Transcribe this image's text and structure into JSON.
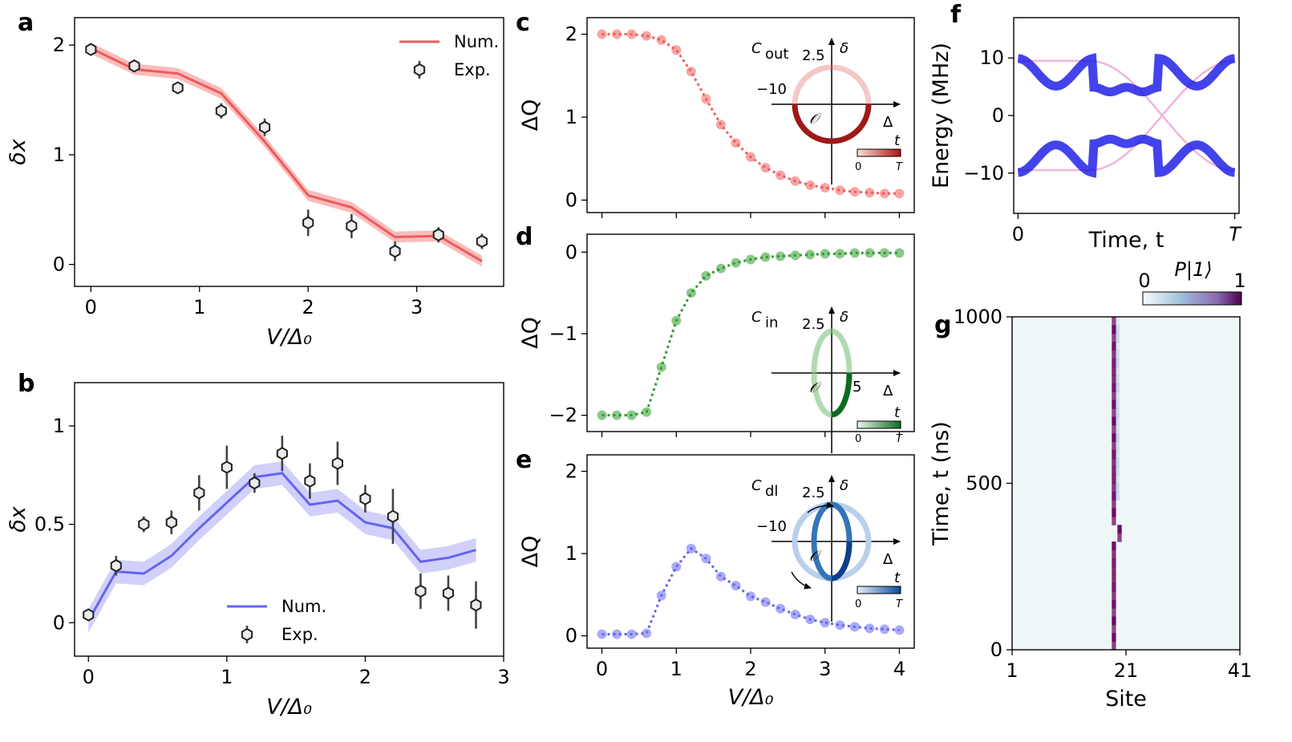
{
  "colors": {
    "red": "#f05a5a",
    "red_band": "#f8b0b0",
    "blue": "#6464f0",
    "blue_band": "#c8c8fa",
    "green": "#2e9a2e",
    "pink": "#f2b4dc",
    "dark_blue": "#1414e6",
    "heat_bg": "#eef6f8",
    "heat_dark": "#6e0a60"
  },
  "labels": {
    "a": "a",
    "b": "b",
    "c": "c",
    "d": "d",
    "e": "e",
    "f": "f",
    "g": "g"
  },
  "chart_data": [
    {
      "id": "a",
      "type": "line",
      "xlabel": "V/Δ₀",
      "ylabel": "δx",
      "xlim": [
        -0.15,
        3.8
      ],
      "ylim": [
        -0.2,
        2.25
      ],
      "xticks": [
        0,
        1,
        2,
        3
      ],
      "yticks": [
        0,
        1,
        2
      ],
      "legend": {
        "placement": "top-right",
        "num_label": "Num.",
        "exp_label": "Exp."
      },
      "series": [
        {
          "name": "Num.",
          "x": [
            0,
            0.4,
            0.8,
            1.2,
            1.6,
            2.0,
            2.4,
            2.8,
            3.2,
            3.6
          ],
          "y": [
            1.97,
            1.78,
            1.74,
            1.56,
            1.12,
            0.63,
            0.52,
            0.25,
            0.26,
            0.03
          ],
          "band": 0.05
        },
        {
          "name": "Exp.",
          "x": [
            0,
            0.4,
            0.8,
            1.2,
            1.6,
            2.0,
            2.4,
            2.8,
            3.2,
            3.6
          ],
          "y": [
            1.96,
            1.81,
            1.61,
            1.4,
            1.25,
            0.38,
            0.35,
            0.12,
            0.27,
            0.21
          ],
          "err": [
            0.03,
            0.03,
            0.03,
            0.07,
            0.08,
            0.12,
            0.11,
            0.09,
            0.07,
            0.07
          ]
        }
      ]
    },
    {
      "id": "b",
      "type": "line",
      "xlabel": "V/Δ₀",
      "ylabel": "δx",
      "xlim": [
        -0.1,
        3.0
      ],
      "ylim": [
        -0.17,
        1.22
      ],
      "xticks": [
        0,
        1,
        2,
        3
      ],
      "yticks": [
        0,
        0.5,
        1
      ],
      "legend": {
        "placement": "bottom-center",
        "num_label": "Num.",
        "exp_label": "Exp."
      },
      "series": [
        {
          "name": "Num.",
          "x": [
            0,
            0.2,
            0.4,
            0.6,
            0.8,
            1.0,
            1.2,
            1.4,
            1.6,
            1.8,
            2.0,
            2.2,
            2.4,
            2.6,
            2.8
          ],
          "y": [
            0.01,
            0.26,
            0.25,
            0.34,
            0.48,
            0.61,
            0.74,
            0.76,
            0.6,
            0.62,
            0.51,
            0.48,
            0.31,
            0.33,
            0.37
          ],
          "band": 0.06
        },
        {
          "name": "Exp.",
          "x": [
            0,
            0.2,
            0.4,
            0.6,
            0.8,
            1.0,
            1.2,
            1.4,
            1.6,
            1.8,
            2.0,
            2.2,
            2.4,
            2.6,
            2.8
          ],
          "y": [
            0.04,
            0.29,
            0.5,
            0.51,
            0.66,
            0.79,
            0.71,
            0.86,
            0.72,
            0.81,
            0.63,
            0.54,
            0.16,
            0.15,
            0.09
          ],
          "err": [
            0.02,
            0.05,
            0.04,
            0.06,
            0.09,
            0.11,
            0.05,
            0.09,
            0.09,
            0.11,
            0.07,
            0.14,
            0.09,
            0.09,
            0.12
          ]
        }
      ]
    },
    {
      "id": "c",
      "type": "scatter",
      "ylabel": "ΔQ",
      "xlim": [
        -0.2,
        4.2
      ],
      "ylim": [
        -0.15,
        2.2
      ],
      "yticks": [
        0,
        1,
        2
      ],
      "x": [
        0,
        0.2,
        0.4,
        0.6,
        0.8,
        1.0,
        1.2,
        1.4,
        1.6,
        1.8,
        2.0,
        2.2,
        2.4,
        2.6,
        2.8,
        3.0,
        3.2,
        3.4,
        3.6,
        3.8,
        4.0
      ],
      "y": [
        2.0,
        2.0,
        2.0,
        1.98,
        1.93,
        1.81,
        1.55,
        1.22,
        0.91,
        0.69,
        0.52,
        0.39,
        0.3,
        0.23,
        0.18,
        0.15,
        0.12,
        0.1,
        0.09,
        0.08,
        0.08
      ],
      "inset": {
        "title_main": "C",
        "title_sub": "out",
        "ytick": "2.5",
        "xtick": "−10",
        "origin": "𝒪",
        "xaxis": "Δ",
        "yaxis": "δ",
        "cb_label": "t",
        "cb_lo": "0",
        "cb_hi": "T"
      }
    },
    {
      "id": "d",
      "type": "scatter",
      "ylabel": "ΔQ",
      "xlim": [
        -0.2,
        4.2
      ],
      "ylim": [
        -2.2,
        0.22
      ],
      "yticks": [
        0,
        -1,
        -2
      ],
      "x": [
        0,
        0.2,
        0.4,
        0.6,
        0.8,
        1.0,
        1.2,
        1.4,
        1.6,
        1.8,
        2.0,
        2.2,
        2.4,
        2.6,
        2.8,
        3.0,
        3.2,
        3.4,
        3.6,
        3.8,
        4.0
      ],
      "y": [
        -2.0,
        -2.0,
        -2.0,
        -1.96,
        -1.41,
        -0.84,
        -0.5,
        -0.29,
        -0.2,
        -0.13,
        -0.09,
        -0.06,
        -0.05,
        -0.04,
        -0.03,
        -0.02,
        -0.02,
        -0.01,
        -0.01,
        -0.01,
        -0.01
      ],
      "inset": {
        "title_main": "C",
        "title_sub": "in",
        "ytick": "2.5",
        "xtick": "5",
        "origin": "𝒪",
        "xaxis": "Δ",
        "yaxis": "δ",
        "cb_label": "t",
        "cb_lo": "0",
        "cb_hi": "T"
      }
    },
    {
      "id": "e",
      "type": "scatter",
      "xlabel": "V/Δ₀",
      "ylabel": "ΔQ",
      "xlim": [
        -0.2,
        4.2
      ],
      "ylim": [
        -0.15,
        2.2
      ],
      "xticks": [
        0,
        1,
        2,
        3,
        4
      ],
      "yticks": [
        0,
        1,
        2
      ],
      "x": [
        0,
        0.2,
        0.4,
        0.6,
        0.8,
        1.0,
        1.2,
        1.4,
        1.6,
        1.8,
        2.0,
        2.2,
        2.4,
        2.6,
        2.8,
        3.0,
        3.2,
        3.4,
        3.6,
        3.8,
        4.0
      ],
      "y": [
        0.02,
        0.02,
        0.02,
        0.03,
        0.49,
        0.84,
        1.06,
        0.94,
        0.72,
        0.61,
        0.48,
        0.41,
        0.33,
        0.26,
        0.2,
        0.16,
        0.13,
        0.11,
        0.09,
        0.08,
        0.07
      ],
      "inset": {
        "title_main": "C",
        "title_sub": "dl",
        "ytick": "2.5",
        "xtick": "−10",
        "origin": "𝒪",
        "xaxis": "Δ",
        "yaxis": "δ",
        "cb_label": "t",
        "cb_lo": "0",
        "cb_hi": "T"
      }
    },
    {
      "id": "f",
      "type": "line",
      "xlabel": "Time, t",
      "ylabel": "Energy (MHz)",
      "xlim": [
        -0.02,
        1.02
      ],
      "ylim": [
        -17,
        17
      ],
      "xtick_labels": [
        "0",
        "T"
      ],
      "yticks": [
        -10,
        0,
        10
      ],
      "ytick_labels": [
        "−10",
        "0",
        "10"
      ]
    },
    {
      "id": "g",
      "type": "heatmap",
      "xlabel": "Site",
      "ylabel": "Time, t (ns)",
      "xlim": [
        1,
        41
      ],
      "ylim": [
        0,
        1000
      ],
      "xticks": [
        1,
        21,
        41
      ],
      "yticks": [
        0,
        500,
        1000
      ],
      "colorbar": {
        "label": "P|1⟩",
        "min": "0",
        "max": "1"
      },
      "localized_site": 19
    }
  ]
}
